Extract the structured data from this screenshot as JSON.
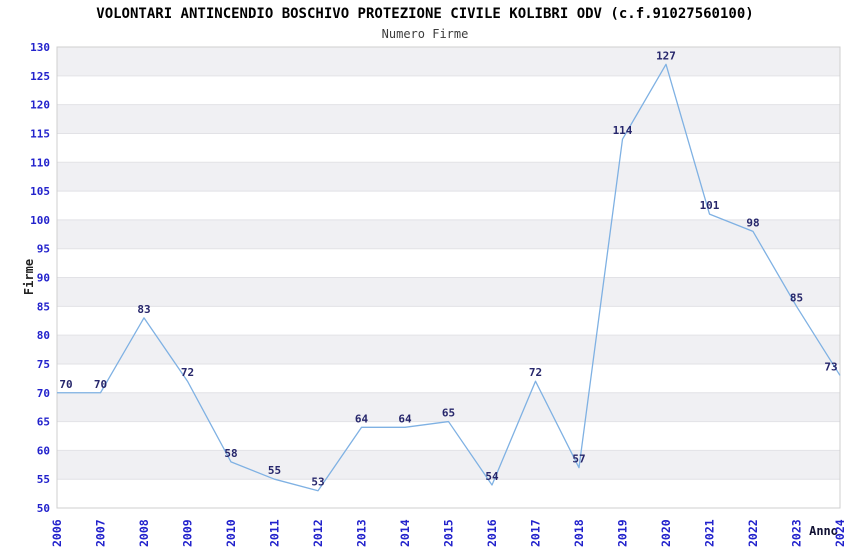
{
  "chart_data": {
    "type": "line",
    "title": "VOLONTARI ANTINCENDIO BOSCHIVO PROTEZIONE CIVILE KOLIBRI ODV (c.f.91027560100)",
    "subtitle": "Numero Firme",
    "xlabel": "Anno",
    "ylabel": "Firme",
    "categories": [
      "2006",
      "2007",
      "2008",
      "2009",
      "2010",
      "2011",
      "2012",
      "2013",
      "2014",
      "2015",
      "2016",
      "2017",
      "2018",
      "2019",
      "2020",
      "2021",
      "2022",
      "2023",
      "2024"
    ],
    "series": [
      {
        "name": "Numero Firme",
        "values": [
          70,
          70,
          83,
          72,
          58,
          55,
          53,
          64,
          64,
          65,
          54,
          72,
          57,
          114,
          127,
          101,
          98,
          85,
          73
        ]
      }
    ],
    "ylim": [
      50,
      130
    ],
    "ytick_step": 5,
    "yticks": [
      50,
      55,
      60,
      65,
      70,
      75,
      80,
      85,
      90,
      95,
      100,
      105,
      110,
      115,
      120,
      125,
      130
    ],
    "grid": "horizontal-bands",
    "legend_position": "none",
    "data_labels_shown": true,
    "colors": {
      "line": "#7fb1e3",
      "tick_label": "#2222cc",
      "data_label": "#26266b",
      "band_gray": "#f0f0f3",
      "band_white": "#ffffff",
      "grid_line": "#e2e2e6",
      "plot_border": "#cfcfcf",
      "title": "#000000",
      "subtitle": "#3c3c3c",
      "ylabel": "#222222",
      "xlabel": "#111133"
    }
  }
}
